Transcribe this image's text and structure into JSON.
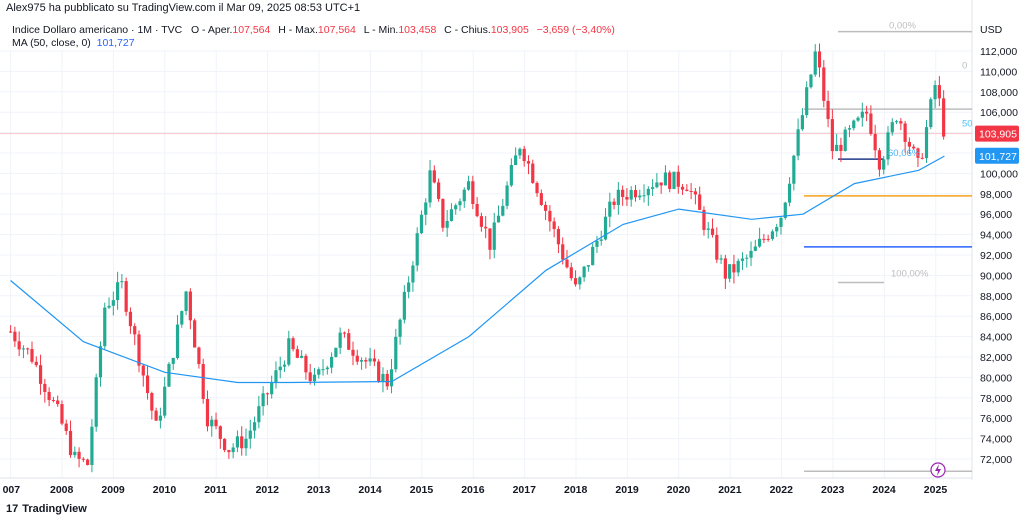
{
  "header": {
    "published_by": "Alex975 ha pubblicato su TradingView.com il Mar 09, 2025 08:53 UTC+1"
  },
  "legend": {
    "symbol": "Indice Dollaro americano · 1M · TVC",
    "o_label": "O - Aper.",
    "o_value": "107,564",
    "h_label": "H - Max.",
    "h_value": "107,564",
    "l_label": "L - Min.",
    "l_value": "103,458",
    "c_label": "C - Chius.",
    "c_value": "103,905",
    "change": "−3,659 (−3,40%)",
    "ma_label": "MA (50, close, 0)",
    "ma_value": "101,727"
  },
  "footer": {
    "brand": "TradingView",
    "logo_mark": "17"
  },
  "colors": {
    "up": "#22ab94",
    "down": "#f23645",
    "ma": "#2196f3",
    "price_badge": "#f23645",
    "ma_badge": "#2196f3",
    "fib_orange": "#f7a21b",
    "fib_blue": "#2962ff"
  },
  "chart_data": {
    "type": "candlestick",
    "currency": "USD",
    "y_ticks": [
      "72,000",
      "74,000",
      "76,000",
      "78,000",
      "80,000",
      "82,000",
      "84,000",
      "86,000",
      "88,000",
      "90,000",
      "92,000",
      "94,000",
      "96,000",
      "98,000",
      "100,000",
      "102,000",
      "104,000",
      "106,000",
      "108,000",
      "110,000",
      "112,000"
    ],
    "x_ticks": [
      "007",
      "2008",
      "2009",
      "2010",
      "2011",
      "2012",
      "2013",
      "2014",
      "2015",
      "2016",
      "2017",
      "2018",
      "2019",
      "2020",
      "2021",
      "2022",
      "2023",
      "2024",
      "2025"
    ],
    "ylim": [
      70.5,
      114
    ],
    "current_price": "103,905",
    "ma_current": "101,727",
    "fib_labels": {
      "top": "0,00%",
      "f0": "0",
      "f50": "50",
      "f6066": "60,06%",
      "f100": "100,00%"
    },
    "grid": true,
    "series": [
      {
        "name": "DXY",
        "kind": "monthly-ohlc-keypoints",
        "points": [
          [
            "2007-01",
            84.5
          ],
          [
            "2007-06",
            82
          ],
          [
            "2007-12",
            76.5
          ],
          [
            "2008-04",
            72
          ],
          [
            "2008-07",
            71.5
          ],
          [
            "2008-11",
            87
          ],
          [
            "2009-03",
            89
          ],
          [
            "2009-11",
            75
          ],
          [
            "2010-06",
            88.5
          ],
          [
            "2010-11",
            76
          ],
          [
            "2011-04",
            73
          ],
          [
            "2011-08",
            74
          ],
          [
            "2012-06",
            83
          ],
          [
            "2012-12",
            79.5
          ],
          [
            "2013-06",
            84
          ],
          [
            "2014-05",
            79.5
          ],
          [
            "2015-03",
            100
          ],
          [
            "2015-06",
            95
          ],
          [
            "2015-12",
            99
          ],
          [
            "2016-05",
            93
          ],
          [
            "2016-12",
            103
          ],
          [
            "2017-05",
            97.5
          ],
          [
            "2018-01",
            88.5
          ],
          [
            "2018-10",
            97.5
          ],
          [
            "2019-09",
            99.5
          ],
          [
            "2020-03",
            99
          ],
          [
            "2020-12",
            90
          ],
          [
            "2021-06",
            92
          ],
          [
            "2022-01",
            96
          ],
          [
            "2022-09",
            112
          ],
          [
            "2023-01",
            102
          ],
          [
            "2023-09",
            106
          ],
          [
            "2023-12",
            101
          ],
          [
            "2024-04",
            106
          ],
          [
            "2024-09",
            100.5
          ],
          [
            "2025-01",
            109
          ],
          [
            "2025-03",
            103.9
          ]
        ]
      },
      {
        "name": "MA (50, close, 0)",
        "kind": "line",
        "points": [
          [
            "2007-01",
            89.5
          ],
          [
            "2008-06",
            83.5
          ],
          [
            "2010-01",
            80.5
          ],
          [
            "2011-06",
            79.5
          ],
          [
            "2012-06",
            79.5
          ],
          [
            "2014-06",
            79.6
          ],
          [
            "2015-12",
            84
          ],
          [
            "2017-06",
            90.5
          ],
          [
            "2018-12",
            95
          ],
          [
            "2020-01",
            96.5
          ],
          [
            "2021-06",
            95.5
          ],
          [
            "2022-06",
            96
          ],
          [
            "2023-06",
            99
          ],
          [
            "2024-09",
            100.3
          ],
          [
            "2025-03",
            101.7
          ]
        ]
      }
    ]
  }
}
